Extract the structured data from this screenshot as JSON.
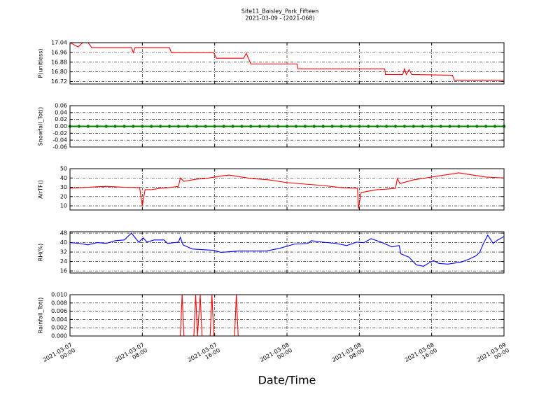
{
  "title": "Site11_Baisley_Park_Fifteen",
  "subtitle": "2021-03-09 - (2021-068)",
  "x_label": "Date/Time",
  "chart_data": [
    {
      "type": "line",
      "y_label": "P(unitless)",
      "color": "#ff0000",
      "xlim": [
        "2021-03-07 00:00",
        "2021-03-09 00:00"
      ],
      "ylim": [
        16.7,
        17.04
      ],
      "grid": true,
      "yticks": [
        16.72,
        {
          "value": 16.8,
          "label": "16.80"
        },
        16.88,
        16.96,
        17.04
      ],
      "x": [
        "2021-03-07 00:00",
        "2021-03-07 00:54",
        "2021-03-07 01:24",
        "2021-03-07 02:00",
        "2021-03-07 02:24",
        "2021-03-07 06:48",
        "2021-03-07 07:00",
        "2021-03-07 07:12",
        "2021-03-07 11:00",
        "2021-03-07 11:12",
        "2021-03-07 15:54",
        "2021-03-07 16:12",
        "2021-03-07 19:12",
        "2021-03-07 19:30",
        "2021-03-07 20:00",
        "2021-03-08 01:06",
        "2021-03-08 01:12",
        "2021-03-08 10:48",
        "2021-03-08 10:54",
        "2021-03-08 12:48",
        "2021-03-08 13:00",
        "2021-03-08 13:12",
        "2021-03-08 13:30",
        "2021-03-08 13:48",
        "2021-03-08 18:18",
        "2021-03-08 18:30",
        "2021-03-09 00:00"
      ],
      "values": [
        17.04,
        17.005,
        17.04,
        17.04,
        17.0,
        17.0,
        16.958,
        17.0,
        17.0,
        16.958,
        16.958,
        16.912,
        16.912,
        16.953,
        16.865,
        16.865,
        16.825,
        16.825,
        16.778,
        16.778,
        16.825,
        16.778,
        16.819,
        16.778,
        16.772,
        16.732,
        16.732
      ]
    },
    {
      "type": "line",
      "y_label": "Snowfall_Tot()",
      "color": "#008000",
      "marker": true,
      "xlim": [
        "2021-03-07 00:00",
        "2021-03-09 00:00"
      ],
      "ylim": [
        -0.06,
        0.06
      ],
      "grid": true,
      "yticks": [
        -0.06,
        -0.04,
        -0.02,
        {
          "value": 0,
          "label": "0.00"
        },
        0.02,
        0.04,
        0.06
      ],
      "x": [
        "2021-03-07 00:00",
        "2021-03-07 01:00",
        "2021-03-07 02:00",
        "2021-03-07 03:00",
        "2021-03-07 04:00",
        "2021-03-07 05:00",
        "2021-03-07 06:00",
        "2021-03-07 07:00",
        "2021-03-07 08:00",
        "2021-03-07 09:00",
        "2021-03-07 10:00",
        "2021-03-07 11:00",
        "2021-03-07 12:00",
        "2021-03-07 13:00",
        "2021-03-07 14:00",
        "2021-03-07 15:00",
        "2021-03-07 16:00",
        "2021-03-07 17:00",
        "2021-03-07 18:00",
        "2021-03-07 19:00",
        "2021-03-07 20:00",
        "2021-03-07 21:00",
        "2021-03-07 22:00",
        "2021-03-07 23:00",
        "2021-03-08 00:00",
        "2021-03-08 01:00",
        "2021-03-08 02:00",
        "2021-03-08 03:00",
        "2021-03-08 04:00",
        "2021-03-08 05:00",
        "2021-03-08 06:00",
        "2021-03-08 07:00",
        "2021-03-08 08:00",
        "2021-03-08 09:00",
        "2021-03-08 10:00",
        "2021-03-08 11:00",
        "2021-03-08 12:00",
        "2021-03-08 13:00",
        "2021-03-08 14:00",
        "2021-03-08 15:00",
        "2021-03-08 16:00",
        "2021-03-08 17:00",
        "2021-03-08 18:00",
        "2021-03-08 19:00",
        "2021-03-08 20:00",
        "2021-03-08 21:00",
        "2021-03-08 22:00",
        "2021-03-08 23:00",
        "2021-03-09 00:00"
      ],
      "values": [
        0,
        0,
        0,
        0,
        0,
        0,
        0,
        0,
        0,
        0,
        0,
        0,
        0,
        0,
        0,
        0,
        0,
        0,
        0,
        0,
        0,
        0,
        0,
        0,
        0,
        0,
        0,
        0,
        0,
        0,
        0,
        0,
        0,
        0,
        0,
        0,
        0,
        0,
        0,
        0,
        0,
        0,
        0,
        0,
        0,
        0,
        0,
        0,
        0
      ]
    },
    {
      "type": "line",
      "y_label": "AirTF()",
      "color": "#ff0000",
      "xlim": [
        "2021-03-07 00:00",
        "2021-03-09 00:00"
      ],
      "ylim": [
        5.5,
        50
      ],
      "grid": true,
      "yticks": [
        10,
        20,
        30,
        40,
        50
      ],
      "x": [
        "2021-03-07 00:00",
        "2021-03-07 02:00",
        "2021-03-07 04:00",
        "2021-03-07 06:00",
        "2021-03-07 07:42",
        "2021-03-07 08:00",
        "2021-03-07 08:18",
        "2021-03-07 09:00",
        "2021-03-07 10:00",
        "2021-03-07 11:00",
        "2021-03-07 12:00",
        "2021-03-07 12:12",
        "2021-03-07 12:36",
        "2021-03-07 14:00",
        "2021-03-07 15:00",
        "2021-03-07 16:00",
        "2021-03-07 17:00",
        "2021-03-07 17:36",
        "2021-03-07 19:00",
        "2021-03-07 20:00",
        "2021-03-07 22:00",
        "2021-03-08 00:00",
        "2021-03-08 02:00",
        "2021-03-08 04:00",
        "2021-03-08 06:00",
        "2021-03-08 07:48",
        "2021-03-08 07:54",
        "2021-03-08 08:12",
        "2021-03-08 09:00",
        "2021-03-08 10:00",
        "2021-03-08 11:00",
        "2021-03-08 12:00",
        "2021-03-08 12:12",
        "2021-03-08 12:30",
        "2021-03-08 14:00",
        "2021-03-08 16:00",
        "2021-03-08 18:00",
        "2021-03-08 19:00",
        "2021-03-08 20:00",
        "2021-03-08 22:00",
        "2021-03-09 00:00"
      ],
      "values": [
        29,
        30,
        31,
        30,
        29.6,
        10,
        27.4,
        27.4,
        28.9,
        29.6,
        31,
        40,
        36.4,
        38.7,
        39.4,
        41,
        42.5,
        43.2,
        41,
        39.4,
        38,
        35,
        33.4,
        31.9,
        29.6,
        28.9,
        7,
        24.3,
        25.8,
        27.4,
        28,
        28.9,
        39.4,
        34,
        38,
        41,
        44,
        45.5,
        44,
        41,
        40
      ]
    },
    {
      "type": "line",
      "y_label": "RH(%)",
      "color": "#0000ff",
      "xlim": [
        "2021-03-07 00:00",
        "2021-03-09 00:00"
      ],
      "ylim": [
        14.3,
        49.2
      ],
      "grid": true,
      "yticks": [
        16,
        24,
        32,
        40,
        48
      ],
      "x": [
        "2021-03-07 00:00",
        "2021-03-07 01:00",
        "2021-03-07 02:00",
        "2021-03-07 03:00",
        "2021-03-07 04:00",
        "2021-03-07 05:00",
        "2021-03-07 06:00",
        "2021-03-07 06:48",
        "2021-03-07 07:36",
        "2021-03-07 08:06",
        "2021-03-07 08:30",
        "2021-03-07 09:18",
        "2021-03-07 10:24",
        "2021-03-07 10:48",
        "2021-03-07 12:00",
        "2021-03-07 12:12",
        "2021-03-07 12:30",
        "2021-03-07 13:30",
        "2021-03-07 14:42",
        "2021-03-07 15:54",
        "2021-03-07 16:42",
        "2021-03-07 18:36",
        "2021-03-07 21:42",
        "2021-03-07 23:12",
        "2021-03-08 00:48",
        "2021-03-08 02:18",
        "2021-03-08 02:42",
        "2021-03-08 03:54",
        "2021-03-08 05:24",
        "2021-03-08 06:36",
        "2021-03-08 07:42",
        "2021-03-08 08:30",
        "2021-03-08 09:18",
        "2021-03-08 10:24",
        "2021-03-08 11:36",
        "2021-03-08 12:24",
        "2021-03-08 12:36",
        "2021-03-08 13:30",
        "2021-03-08 14:18",
        "2021-03-08 15:06",
        "2021-03-08 15:36",
        "2021-03-08 16:12",
        "2021-03-08 16:48",
        "2021-03-08 17:48",
        "2021-03-08 19:18",
        "2021-03-08 20:06",
        "2021-03-08 20:54",
        "2021-03-08 21:18",
        "2021-03-08 21:42",
        "2021-03-08 22:12",
        "2021-03-08 22:48",
        "2021-03-08 23:18",
        "2021-03-09 00:00"
      ],
      "values": [
        40,
        39.3,
        38.1,
        40,
        39.3,
        41.6,
        42.2,
        48,
        40.4,
        44,
        40.4,
        42.2,
        42.2,
        39.3,
        40.4,
        44.5,
        38.1,
        34.6,
        34,
        33.5,
        31.7,
        32.9,
        32.9,
        35.2,
        38.7,
        39.3,
        41.6,
        40.4,
        39.3,
        37.5,
        40.4,
        39.9,
        43.3,
        40.4,
        36.4,
        37.5,
        30.5,
        27.6,
        21.2,
        20,
        22.4,
        24.7,
        22.4,
        21.8,
        23.6,
        25.9,
        28.8,
        31.7,
        38.7,
        46.3,
        39.3,
        42.2,
        45.1
      ]
    },
    {
      "type": "line",
      "y_label": "Rainfall_Tot()",
      "color": "#ff0000",
      "xlim": [
        "2021-03-07 00:00",
        "2021-03-09 00:00"
      ],
      "ylim": [
        0,
        0.01
      ],
      "grid": true,
      "yticks": [
        {
          "value": 0,
          "label": "0.000"
        },
        {
          "value": 0.002,
          "label": "0.002"
        },
        {
          "value": 0.004,
          "label": "0.004"
        },
        {
          "value": 0.006,
          "label": "0.006"
        },
        {
          "value": 0.008,
          "label": "0.008"
        },
        {
          "value": 0.01,
          "label": "0.010"
        }
      ],
      "xticks": [
        {
          "value": "2021-03-07 00:00",
          "label": "2021-03-07\n00:00"
        },
        {
          "value": "2021-03-07 08:00",
          "label": "2021-03-07\n08:00"
        },
        {
          "value": "2021-03-07 16:00",
          "label": "2021-03-07\n16:00"
        },
        {
          "value": "2021-03-08 00:00",
          "label": "2021-03-08\n00:00"
        },
        {
          "value": "2021-03-08 08:00",
          "label": "2021-03-08\n08:00"
        },
        {
          "value": "2021-03-08 16:00",
          "label": "2021-03-08\n16:00"
        },
        {
          "value": "2021-03-09 00:00",
          "label": "2021-03-09\n00:00"
        }
      ],
      "x": [
        "2021-03-07 00:00",
        "2021-03-07 12:12",
        "2021-03-07 12:24",
        "2021-03-07 12:36",
        "2021-03-07 13:42",
        "2021-03-07 13:54",
        "2021-03-07 14:06",
        "2021-03-07 14:24",
        "2021-03-07 14:36",
        "2021-03-07 15:30",
        "2021-03-07 15:42",
        "2021-03-07 15:54",
        "2021-03-07 18:12",
        "2021-03-07 18:24",
        "2021-03-07 18:36",
        "2021-03-09 00:00"
      ],
      "values": [
        0,
        0,
        0.01,
        0,
        0,
        0.01,
        0,
        0.01,
        0,
        0,
        0.01,
        0,
        0,
        0.01,
        0,
        0
      ]
    }
  ]
}
